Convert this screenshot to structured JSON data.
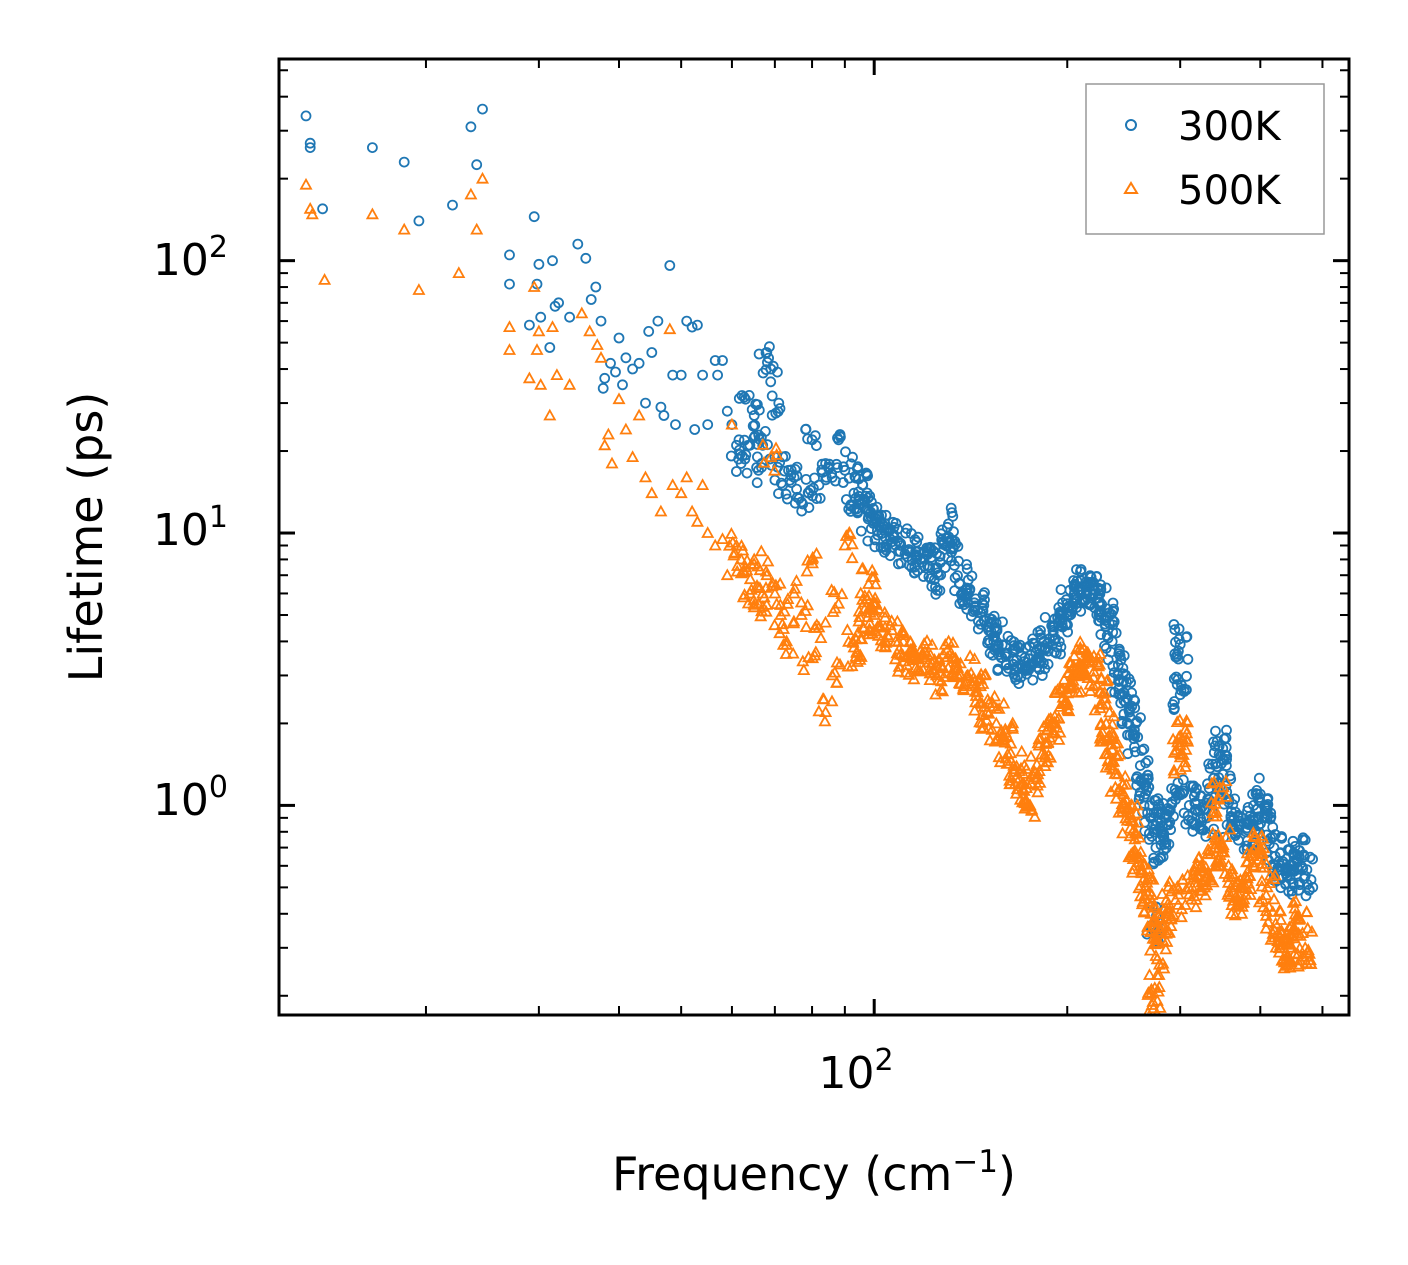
{
  "chart_data": {
    "type": "scatter",
    "xscale": "log",
    "yscale": "log",
    "xlim": [
      11.8,
      550
    ],
    "ylim": [
      0.17,
      550
    ],
    "xlabel": "Frequency",
    "xlabel_unit": "(cm",
    "xlabel_exp": "−1",
    "xlabel_close": ")",
    "ylabel": "Lifetime (ps)",
    "x_ticks": [
      {
        "base": "10",
        "exp": "2",
        "value": 100
      }
    ],
    "y_ticks": [
      {
        "base": "10",
        "exp": "0",
        "value": 1
      },
      {
        "base": "10",
        "exp": "1",
        "value": 10
      },
      {
        "base": "10",
        "exp": "2",
        "value": 100
      }
    ],
    "legend_position": "top-right",
    "series": [
      {
        "name": "300K",
        "color": "#1f77b4",
        "marker": "circle",
        "points": [
          [
            13.0,
            340
          ],
          [
            13.2,
            270
          ],
          [
            13.2,
            260
          ],
          [
            13.8,
            155
          ],
          [
            16.5,
            260
          ],
          [
            18.5,
            230
          ],
          [
            19.5,
            140
          ],
          [
            22.0,
            160
          ],
          [
            23.5,
            310
          ],
          [
            24.0,
            225
          ],
          [
            24.5,
            360
          ],
          [
            27.0,
            105
          ],
          [
            27.0,
            82
          ],
          [
            29.0,
            58
          ],
          [
            29.5,
            145
          ],
          [
            29.8,
            82
          ],
          [
            30.0,
            97
          ],
          [
            30.2,
            62
          ],
          [
            31.5,
            100
          ],
          [
            31.2,
            48
          ],
          [
            31.8,
            68
          ],
          [
            32.2,
            70
          ],
          [
            33.5,
            62
          ],
          [
            34.5,
            115
          ],
          [
            35.5,
            102
          ],
          [
            36.2,
            72
          ],
          [
            36.8,
            80
          ],
          [
            37.5,
            60
          ],
          [
            37.8,
            34
          ],
          [
            38.0,
            37
          ],
          [
            38.8,
            42
          ],
          [
            39.5,
            39
          ],
          [
            40.0,
            52
          ],
          [
            40.5,
            35
          ],
          [
            41.0,
            44
          ],
          [
            42.0,
            40
          ],
          [
            43.0,
            42
          ],
          [
            44.0,
            30
          ],
          [
            44.5,
            55
          ],
          [
            45.0,
            46
          ],
          [
            46.0,
            60
          ],
          [
            46.5,
            29
          ],
          [
            47.0,
            27
          ],
          [
            48.0,
            96
          ],
          [
            48.5,
            38
          ],
          [
            49.0,
            25
          ],
          [
            50.0,
            38
          ],
          [
            51.0,
            60
          ],
          [
            52.0,
            57
          ],
          [
            52.5,
            24
          ],
          [
            53.0,
            58
          ],
          [
            54.0,
            38
          ],
          [
            55.0,
            25
          ],
          [
            56.5,
            43
          ],
          [
            57.0,
            38
          ],
          [
            58.0,
            43
          ],
          [
            59.0,
            28
          ],
          [
            60.0,
            25
          ],
          [
            61.0,
            21
          ],
          [
            62.0,
            18
          ],
          [
            63.0,
            31
          ],
          [
            64.0,
            21
          ],
          [
            65.0,
            27
          ],
          [
            66.0,
            17
          ],
          [
            67.0,
            21
          ],
          [
            68.0,
            46
          ],
          [
            69.0,
            40
          ],
          [
            70.0,
            19
          ],
          [
            71.0,
            30
          ],
          [
            72.0,
            15
          ],
          [
            73.5,
            17
          ],
          [
            75.0,
            16
          ],
          [
            77.0,
            13
          ],
          [
            79.0,
            14
          ],
          [
            80.0,
            22
          ],
          [
            82.0,
            15
          ],
          [
            84.0,
            18
          ],
          [
            86.0,
            16
          ],
          [
            88.0,
            22
          ],
          [
            90.0,
            17
          ],
          [
            93.0,
            14
          ],
          [
            96.0,
            15
          ],
          [
            98.0,
            12
          ],
          [
            100.0,
            11
          ],
          [
            103.0,
            10
          ],
          [
            106.0,
            9.5
          ],
          [
            110.0,
            9.0
          ],
          [
            114.0,
            8.5
          ],
          [
            118.0,
            8.0
          ],
          [
            122.0,
            7.5
          ],
          [
            126.0,
            7.0
          ],
          [
            130.0,
            10.5
          ],
          [
            132.0,
            8.5
          ],
          [
            136.0,
            6.5
          ],
          [
            140.0,
            6.0
          ],
          [
            145.0,
            5.2
          ],
          [
            150.0,
            4.5
          ],
          [
            155.0,
            4.0
          ],
          [
            160.0,
            3.6
          ],
          [
            165.0,
            3.4
          ],
          [
            170.0,
            3.2
          ],
          [
            175.0,
            3.3
          ],
          [
            180.0,
            3.5
          ],
          [
            185.0,
            3.8
          ],
          [
            190.0,
            4.2
          ],
          [
            195.0,
            4.8
          ],
          [
            200.0,
            5.3
          ],
          [
            205.0,
            5.8
          ],
          [
            210.0,
            6.2
          ],
          [
            215.0,
            6.4
          ],
          [
            220.0,
            6.0
          ],
          [
            225.0,
            5.4
          ],
          [
            230.0,
            4.8
          ],
          [
            235.0,
            4.0
          ],
          [
            240.0,
            3.0
          ],
          [
            245.0,
            2.6
          ],
          [
            250.0,
            2.2
          ],
          [
            255.0,
            1.8
          ],
          [
            260.0,
            1.4
          ],
          [
            265.0,
            1.1
          ],
          [
            270.0,
            0.9
          ],
          [
            272.0,
            0.36
          ],
          [
            275.0,
            0.7
          ],
          [
            280.0,
            0.8
          ],
          [
            285.0,
            0.9
          ],
          [
            295.0,
            1.05
          ],
          [
            300.0,
            3.9
          ],
          [
            300.0,
            2.55
          ],
          [
            310.0,
            1.0
          ],
          [
            320.0,
            0.95
          ],
          [
            330.0,
            0.9
          ],
          [
            340.0,
            1.2
          ],
          [
            345.0,
            1.65
          ],
          [
            350.0,
            1.3
          ],
          [
            360.0,
            0.9
          ],
          [
            370.0,
            0.85
          ],
          [
            380.0,
            0.8
          ],
          [
            390.0,
            0.9
          ],
          [
            400.0,
            1.1
          ],
          [
            410.0,
            0.9
          ],
          [
            420.0,
            0.7
          ],
          [
            430.0,
            0.6
          ],
          [
            440.0,
            0.55
          ],
          [
            450.0,
            0.6
          ],
          [
            460.0,
            0.65
          ],
          [
            470.0,
            0.55
          ]
        ]
      },
      {
        "name": "500K",
        "color": "#ff7f0e",
        "marker": "triangle",
        "points": [
          [
            13.0,
            190
          ],
          [
            13.2,
            155
          ],
          [
            13.3,
            148
          ],
          [
            13.9,
            85
          ],
          [
            16.5,
            148
          ],
          [
            18.5,
            130
          ],
          [
            19.5,
            78
          ],
          [
            22.5,
            90
          ],
          [
            23.5,
            175
          ],
          [
            24.0,
            130
          ],
          [
            24.5,
            200
          ],
          [
            27.0,
            57
          ],
          [
            27.0,
            47
          ],
          [
            29.0,
            37
          ],
          [
            29.5,
            80
          ],
          [
            29.8,
            47
          ],
          [
            30.0,
            55
          ],
          [
            30.2,
            35
          ],
          [
            31.2,
            27
          ],
          [
            31.5,
            57
          ],
          [
            32.0,
            38
          ],
          [
            33.5,
            35
          ],
          [
            35.0,
            64
          ],
          [
            36.0,
            55
          ],
          [
            37.0,
            49
          ],
          [
            37.5,
            44
          ],
          [
            38.0,
            21
          ],
          [
            38.5,
            23
          ],
          [
            39.0,
            18
          ],
          [
            40.0,
            31
          ],
          [
            41.0,
            24
          ],
          [
            42.0,
            19
          ],
          [
            43.0,
            27
          ],
          [
            44.0,
            16
          ],
          [
            45.0,
            14
          ],
          [
            46.5,
            12
          ],
          [
            48.0,
            56
          ],
          [
            48.5,
            15
          ],
          [
            50.0,
            14
          ],
          [
            51.0,
            16
          ],
          [
            52.0,
            12
          ],
          [
            53.0,
            11
          ],
          [
            54.0,
            15
          ],
          [
            55.0,
            10
          ],
          [
            56.5,
            9
          ],
          [
            58.0,
            9.5
          ],
          [
            59.0,
            7
          ],
          [
            60.0,
            25
          ],
          [
            61.0,
            9
          ],
          [
            62.0,
            8
          ],
          [
            63.0,
            7.5
          ],
          [
            64.0,
            6
          ],
          [
            65.0,
            8
          ],
          [
            66.0,
            5.5
          ],
          [
            67.0,
            6
          ],
          [
            68.0,
            7
          ],
          [
            69.0,
            19
          ],
          [
            70.0,
            6
          ],
          [
            71.5,
            5
          ],
          [
            73.0,
            4
          ],
          [
            75.0,
            6
          ],
          [
            77.0,
            5
          ],
          [
            79.0,
            3.5
          ],
          [
            80.0,
            8
          ],
          [
            82.0,
            4.5
          ],
          [
            84.0,
            2.2
          ],
          [
            86.0,
            3.0
          ],
          [
            88.0,
            5.5
          ],
          [
            90.0,
            9.0
          ],
          [
            93.0,
            3.8
          ],
          [
            96.0,
            4.5
          ],
          [
            98.0,
            6.5
          ],
          [
            100.0,
            5.0
          ],
          [
            104.0,
            4.5
          ],
          [
            108.0,
            4.0
          ],
          [
            112.0,
            3.5
          ],
          [
            116.0,
            3.2
          ],
          [
            120.0,
            3.5
          ],
          [
            125.0,
            3.0
          ],
          [
            130.0,
            3.5
          ],
          [
            135.0,
            3.2
          ],
          [
            140.0,
            3.0
          ],
          [
            145.0,
            2.6
          ],
          [
            150.0,
            2.2
          ],
          [
            155.0,
            2.0
          ],
          [
            160.0,
            1.7
          ],
          [
            165.0,
            1.4
          ],
          [
            170.0,
            1.2
          ],
          [
            175.0,
            1.0
          ],
          [
            180.0,
            1.3
          ],
          [
            185.0,
            1.7
          ],
          [
            190.0,
            2.0
          ],
          [
            195.0,
            2.3
          ],
          [
            200.0,
            2.6
          ],
          [
            205.0,
            3.0
          ],
          [
            210.0,
            3.3
          ],
          [
            215.0,
            3.5
          ],
          [
            220.0,
            3.1
          ],
          [
            225.0,
            2.6
          ],
          [
            230.0,
            2.0
          ],
          [
            235.0,
            1.6
          ],
          [
            240.0,
            1.3
          ],
          [
            245.0,
            1.1
          ],
          [
            250.0,
            0.9
          ],
          [
            255.0,
            0.75
          ],
          [
            260.0,
            0.6
          ],
          [
            265.0,
            0.5
          ],
          [
            270.0,
            0.4
          ],
          [
            272.0,
            0.19
          ],
          [
            275.0,
            0.28
          ],
          [
            280.0,
            0.35
          ],
          [
            285.0,
            0.4
          ],
          [
            295.0,
            0.45
          ],
          [
            300.0,
            1.8
          ],
          [
            300.0,
            1.5
          ],
          [
            310.0,
            0.5
          ],
          [
            320.0,
            0.55
          ],
          [
            330.0,
            0.55
          ],
          [
            340.0,
            0.7
          ],
          [
            345.0,
            1.05
          ],
          [
            350.0,
            0.7
          ],
          [
            360.0,
            0.5
          ],
          [
            370.0,
            0.45
          ],
          [
            380.0,
            0.5
          ],
          [
            390.0,
            0.6
          ],
          [
            400.0,
            0.7
          ],
          [
            410.0,
            0.5
          ],
          [
            420.0,
            0.35
          ],
          [
            430.0,
            0.3
          ],
          [
            440.0,
            0.28
          ],
          [
            450.0,
            0.33
          ],
          [
            460.0,
            0.38
          ],
          [
            470.0,
            0.3
          ]
        ]
      }
    ]
  }
}
